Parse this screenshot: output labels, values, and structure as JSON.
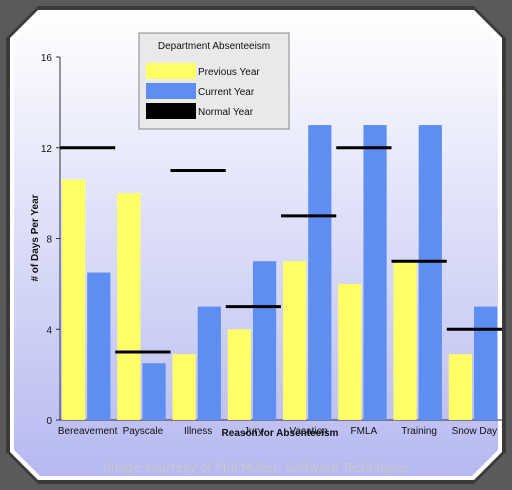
{
  "chart_data": {
    "type": "bar",
    "title": "",
    "xlabel": "Reason for Absenteeism",
    "ylabel": "# of Days Per Year",
    "ylim": [
      0,
      16
    ],
    "yticks": [
      0,
      4,
      8,
      12,
      16
    ],
    "grid": false,
    "legend": {
      "title": "Department Absenteeism",
      "placement": "top-left"
    },
    "categories": [
      "Bereavement",
      "Payscale",
      "Illness",
      "Jury",
      "Vacation",
      "FMLA",
      "Training",
      "Snow Day"
    ],
    "series": [
      {
        "name": "Previous Year",
        "kind": "bar",
        "color": "#ffff66",
        "values": [
          10.6,
          10.0,
          2.9,
          4.0,
          7.0,
          6.0,
          7.0,
          2.9
        ]
      },
      {
        "name": "Current Year",
        "kind": "bar",
        "color": "#5f8ef2",
        "values": [
          6.5,
          2.5,
          5.0,
          7.0,
          13.0,
          13.0,
          13.0,
          5.0
        ]
      },
      {
        "name": "Normal Year",
        "kind": "line-marker",
        "color": "#000000",
        "values": [
          12,
          3,
          11,
          5,
          9,
          12,
          7,
          4
        ]
      }
    ]
  },
  "caption": "Image courtesy of Phil Muller, Software Techniques"
}
